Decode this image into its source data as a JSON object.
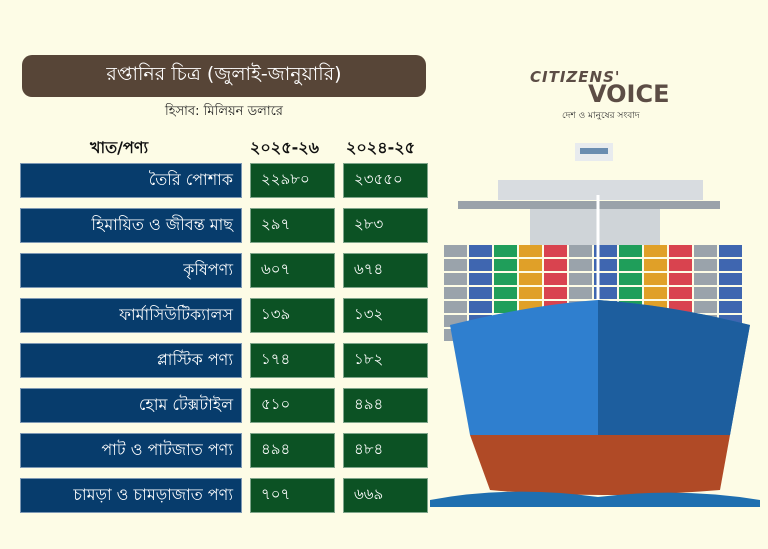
{
  "title": "রপ্তানির চিত্র (জুলাই-জানুয়ারি)",
  "unit": "হিসাব: মিলিয়ন ডলারে",
  "logo": {
    "line1": "CITIZENS'",
    "line2": "VOICE",
    "tagline": "দেশ ও মানুষের সংবাদ"
  },
  "colors": {
    "title_bg": "#574537",
    "label_bg": "#073c6c",
    "value_bg": "#0c5224",
    "background": "#fdfce6"
  },
  "chart_data": {
    "type": "table",
    "columns": [
      "খাত/পণ্য",
      "২০২৫-২৬",
      "২০২৪-২৫"
    ],
    "rows": [
      {
        "label": "তৈরি পোশাক",
        "v1": "২২৯৮০",
        "v2": "২৩৫৫০"
      },
      {
        "label": "হিমায়িত ও জীবন্ত মাছ",
        "v1": "২৯৭",
        "v2": "২৮৩"
      },
      {
        "label": "কৃষিপণ্য",
        "v1": "৬০৭",
        "v2": "৬৭৪"
      },
      {
        "label": "ফার্মাসিউটিক্যালস",
        "v1": "১৩৯",
        "v2": "১৩২"
      },
      {
        "label": "প্লাস্টিক পণ্য",
        "v1": "১৭৪",
        "v2": "১৮২"
      },
      {
        "label": "হোম টেক্সটাইল",
        "v1": "৫১০",
        "v2": "৪৯৪"
      },
      {
        "label": "পাট ও পাটজাত পণ্য",
        "v1": "৪৯৪",
        "v2": "৪৮৪"
      },
      {
        "label": "চামড়া ও চামড়াজাত পণ্য",
        "v1": "৭০৭",
        "v2": "৬৬৯"
      }
    ]
  }
}
